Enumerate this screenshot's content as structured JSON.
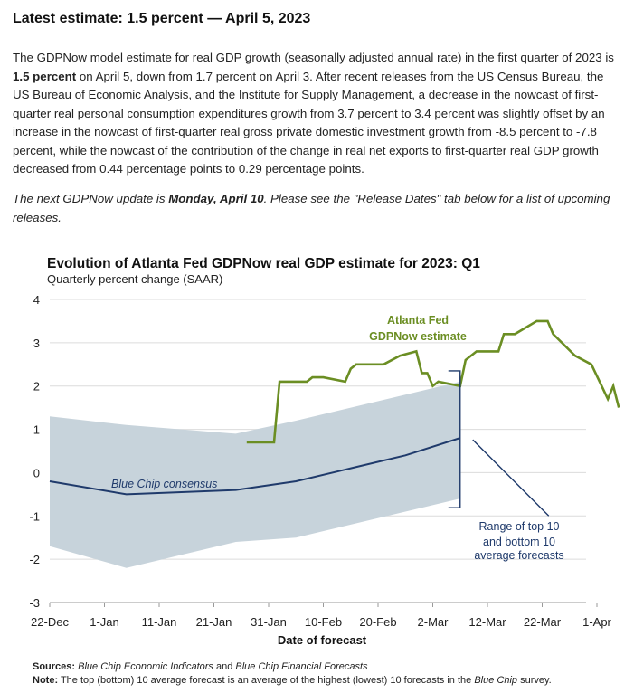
{
  "headline": "Latest estimate: 1.5 percent — April 5, 2023",
  "paragraph1": {
    "t1": "The GDPNow model estimate for real GDP growth (seasonally adjusted annual rate) in the first quarter of 2023 is ",
    "t2": "1.5 percent",
    "t3": " on April 5, down from 1.7 percent on April 3. After recent releases from the US Census Bureau, the US Bureau of Economic Analysis, and the Institute for Supply Management, a decrease in the nowcast of first-quarter real personal consumption expenditures growth from 3.7 percent to 3.4 percent was slightly offset by an increase in the nowcast of first-quarter real gross private domestic investment growth from -8.5 percent to -7.8 percent, while the nowcast of the contribution of the change in real net exports to first-quarter real GDP growth decreased from 0.44 percentage points to 0.29 percentage points."
  },
  "paragraph2": {
    "t1": "The next GDPNow update is ",
    "t2": "Monday, April 10",
    "t3": ". Please see the \"Release Dates\" tab below for a list of upcoming releases."
  },
  "chart_data": {
    "type": "line",
    "title": "Evolution of Atlanta Fed GDPNow real GDP estimate for 2023: Q1",
    "subtitle": "Quarterly percent change (SAAR)",
    "xlabel": "Date of forecast",
    "ylabel": "",
    "x_range": [
      "2022-12-22",
      "2023-04-05"
    ],
    "ylim": [
      -3,
      4
    ],
    "y_ticks": [
      -3,
      -2,
      -1,
      0,
      1,
      2,
      3,
      4
    ],
    "x_tick_labels": [
      "22-Dec",
      "1-Jan",
      "11-Jan",
      "21-Jan",
      "31-Jan",
      "10-Feb",
      "20-Feb",
      "2-Mar",
      "12-Mar",
      "22-Mar",
      "1-Apr"
    ],
    "grid": "horizontal",
    "series": [
      {
        "name": "Atlanta Fed GDPNow estimate",
        "color": "#6b8e23",
        "points": [
          [
            "2023-01-27",
            0.7
          ],
          [
            "2023-02-01",
            0.7
          ],
          [
            "2023-02-02",
            2.1
          ],
          [
            "2023-02-07",
            2.1
          ],
          [
            "2023-02-08",
            2.2
          ],
          [
            "2023-02-10",
            2.2
          ],
          [
            "2023-02-14",
            2.1
          ],
          [
            "2023-02-15",
            2.4
          ],
          [
            "2023-02-16",
            2.5
          ],
          [
            "2023-02-21",
            2.5
          ],
          [
            "2023-02-24",
            2.7
          ],
          [
            "2023-02-27",
            2.8
          ],
          [
            "2023-02-28",
            2.3
          ],
          [
            "2023-03-01",
            2.3
          ],
          [
            "2023-03-02",
            2.0
          ],
          [
            "2023-03-03",
            2.1
          ],
          [
            "2023-03-07",
            2.0
          ],
          [
            "2023-03-08",
            2.6
          ],
          [
            "2023-03-10",
            2.8
          ],
          [
            "2023-03-14",
            2.8
          ],
          [
            "2023-03-15",
            3.2
          ],
          [
            "2023-03-17",
            3.2
          ],
          [
            "2023-03-21",
            3.5
          ],
          [
            "2023-03-23",
            3.5
          ],
          [
            "2023-03-24",
            3.2
          ],
          [
            "2023-03-28",
            2.7
          ],
          [
            "2023-03-31",
            2.5
          ],
          [
            "2023-04-03",
            1.7
          ],
          [
            "2023-04-04",
            2.0
          ],
          [
            "2023-04-05",
            1.5
          ]
        ]
      },
      {
        "name": "Blue Chip consensus",
        "color": "#1f3a6b",
        "points": [
          [
            "2022-12-22",
            -0.2
          ],
          [
            "2023-01-05",
            -0.5
          ],
          [
            "2023-01-25",
            -0.4
          ],
          [
            "2023-02-05",
            -0.2
          ],
          [
            "2023-02-15",
            0.1
          ],
          [
            "2023-02-25",
            0.4
          ],
          [
            "2023-03-07",
            0.8
          ]
        ]
      }
    ],
    "band": {
      "label": "Range of top 10 and bottom 10 average forecasts",
      "color": "#c7d3db",
      "upper": [
        [
          "2022-12-22",
          1.3
        ],
        [
          "2023-01-05",
          1.1
        ],
        [
          "2023-01-25",
          0.9
        ],
        [
          "2023-02-05",
          1.2
        ],
        [
          "2023-02-15",
          1.5
        ],
        [
          "2023-02-25",
          1.8
        ],
        [
          "2023-03-07",
          2.1
        ]
      ],
      "lower": [
        [
          "2022-12-22",
          -1.7
        ],
        [
          "2023-01-05",
          -2.2
        ],
        [
          "2023-01-25",
          -1.6
        ],
        [
          "2023-02-05",
          -1.5
        ],
        [
          "2023-02-15",
          -1.2
        ],
        [
          "2023-02-25",
          -0.9
        ],
        [
          "2023-03-07",
          -0.6
        ]
      ]
    },
    "annotations": {
      "gdpnow_label_line1": "Atlanta Fed",
      "gdpnow_label_line2": "GDPNow estimate",
      "bluechip_label": "Blue Chip consensus",
      "range_label_line1": "Range of top 10",
      "range_label_line2": "and bottom 10",
      "range_label_line3": "average forecasts"
    }
  },
  "footnotes": {
    "sources_label": "Sources:",
    "sources_italic1": "Blue Chip Economic Indicators",
    "sources_mid": " and ",
    "sources_italic2": "Blue Chip Financial Forecasts",
    "note_label": "Note:",
    "note_text": " The top (bottom) 10 average forecast is an average of the highest (lowest) 10 forecasts in the ",
    "note_italic": "Blue Chip",
    "note_end": " survey."
  },
  "colors": {
    "gdpnow": "#6b8e23",
    "bluechip": "#1f3a6b",
    "band": "#c7d3db"
  }
}
